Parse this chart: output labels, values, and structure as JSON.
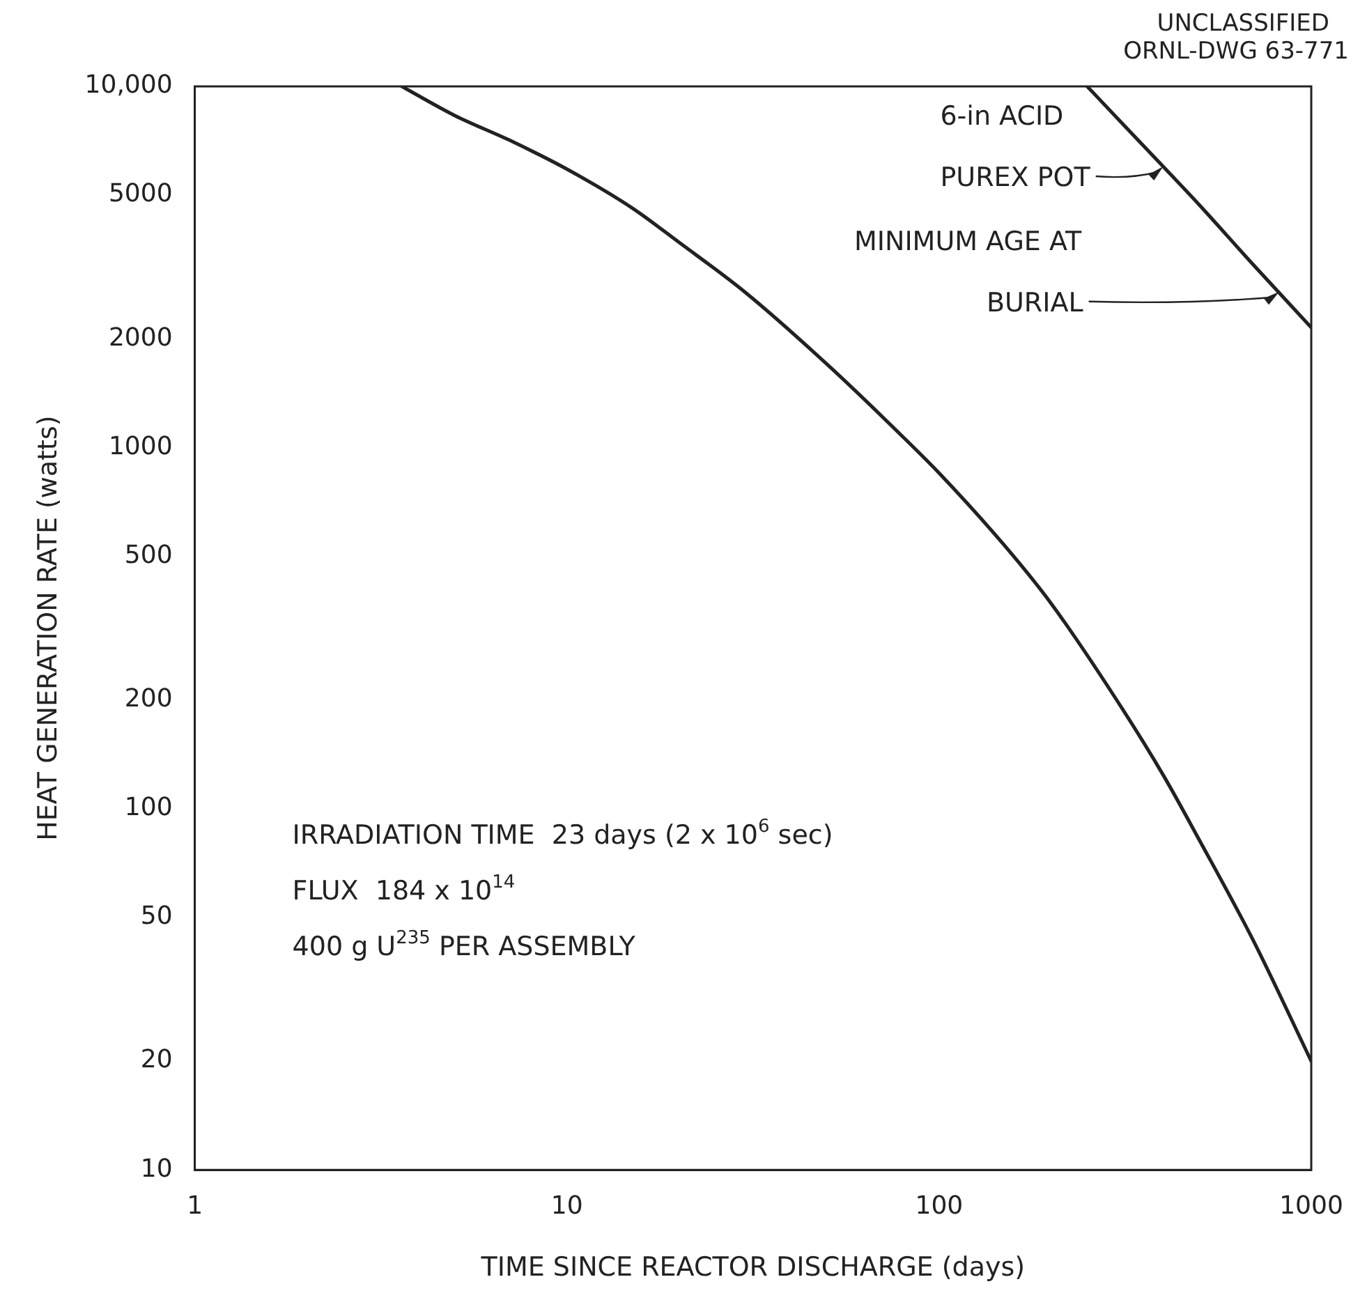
{
  "chart_data": {
    "type": "line",
    "xlabel": "TIME SINCE REACTOR DISCHARGE (days)",
    "ylabel": "HEAT GENERATION RATE (watts)",
    "log": "xy",
    "grid": false,
    "legend": false,
    "marker": "none",
    "line_style": "solid",
    "xlim": [
      1,
      1000
    ],
    "xticks": [
      1,
      10,
      100,
      1000
    ],
    "ylim": [
      10,
      10000
    ],
    "yticks": [
      10,
      20,
      50,
      100,
      200,
      500,
      1000,
      2000,
      5000,
      {
        "value": 10000,
        "label": "10,000"
      }
    ],
    "series": [
      {
        "color": "#222222",
        "x": [
          3.6,
          5,
          7,
          10,
          15,
          20,
          30,
          50,
          80,
          100,
          150,
          200,
          300,
          400,
          500,
          700,
          1000
        ],
        "values": [
          10000,
          8300,
          7100,
          5900,
          4600,
          3700,
          2700,
          1700,
          1070,
          850,
          535,
          370,
          200,
          124,
          82,
          43,
          20
        ]
      },
      {
        "color": "#222222",
        "x": [
          250,
          300,
          400,
          500,
          700,
          1000
        ],
        "values": [
          10000,
          8200,
          6000,
          4700,
          3200,
          2150
        ]
      }
    ],
    "annotations": [
      "UNCLASSIFIED",
      "ORNL-DWG 63-771",
      {
        "text": "6-in ACID\nPUREX POT",
        "x": 400,
        "y": 6000
      },
      {
        "text": "MINIMUM AGE AT\nBURIAL",
        "x": 820,
        "y": 2700
      },
      "IRRADIATION TIME  23 days (2 x 10$^{6}$ sec)",
      "FLUX  184 x 10$^{14}$",
      "400 g U$^{235}$ PER ASSEMBLY"
    ]
  }
}
